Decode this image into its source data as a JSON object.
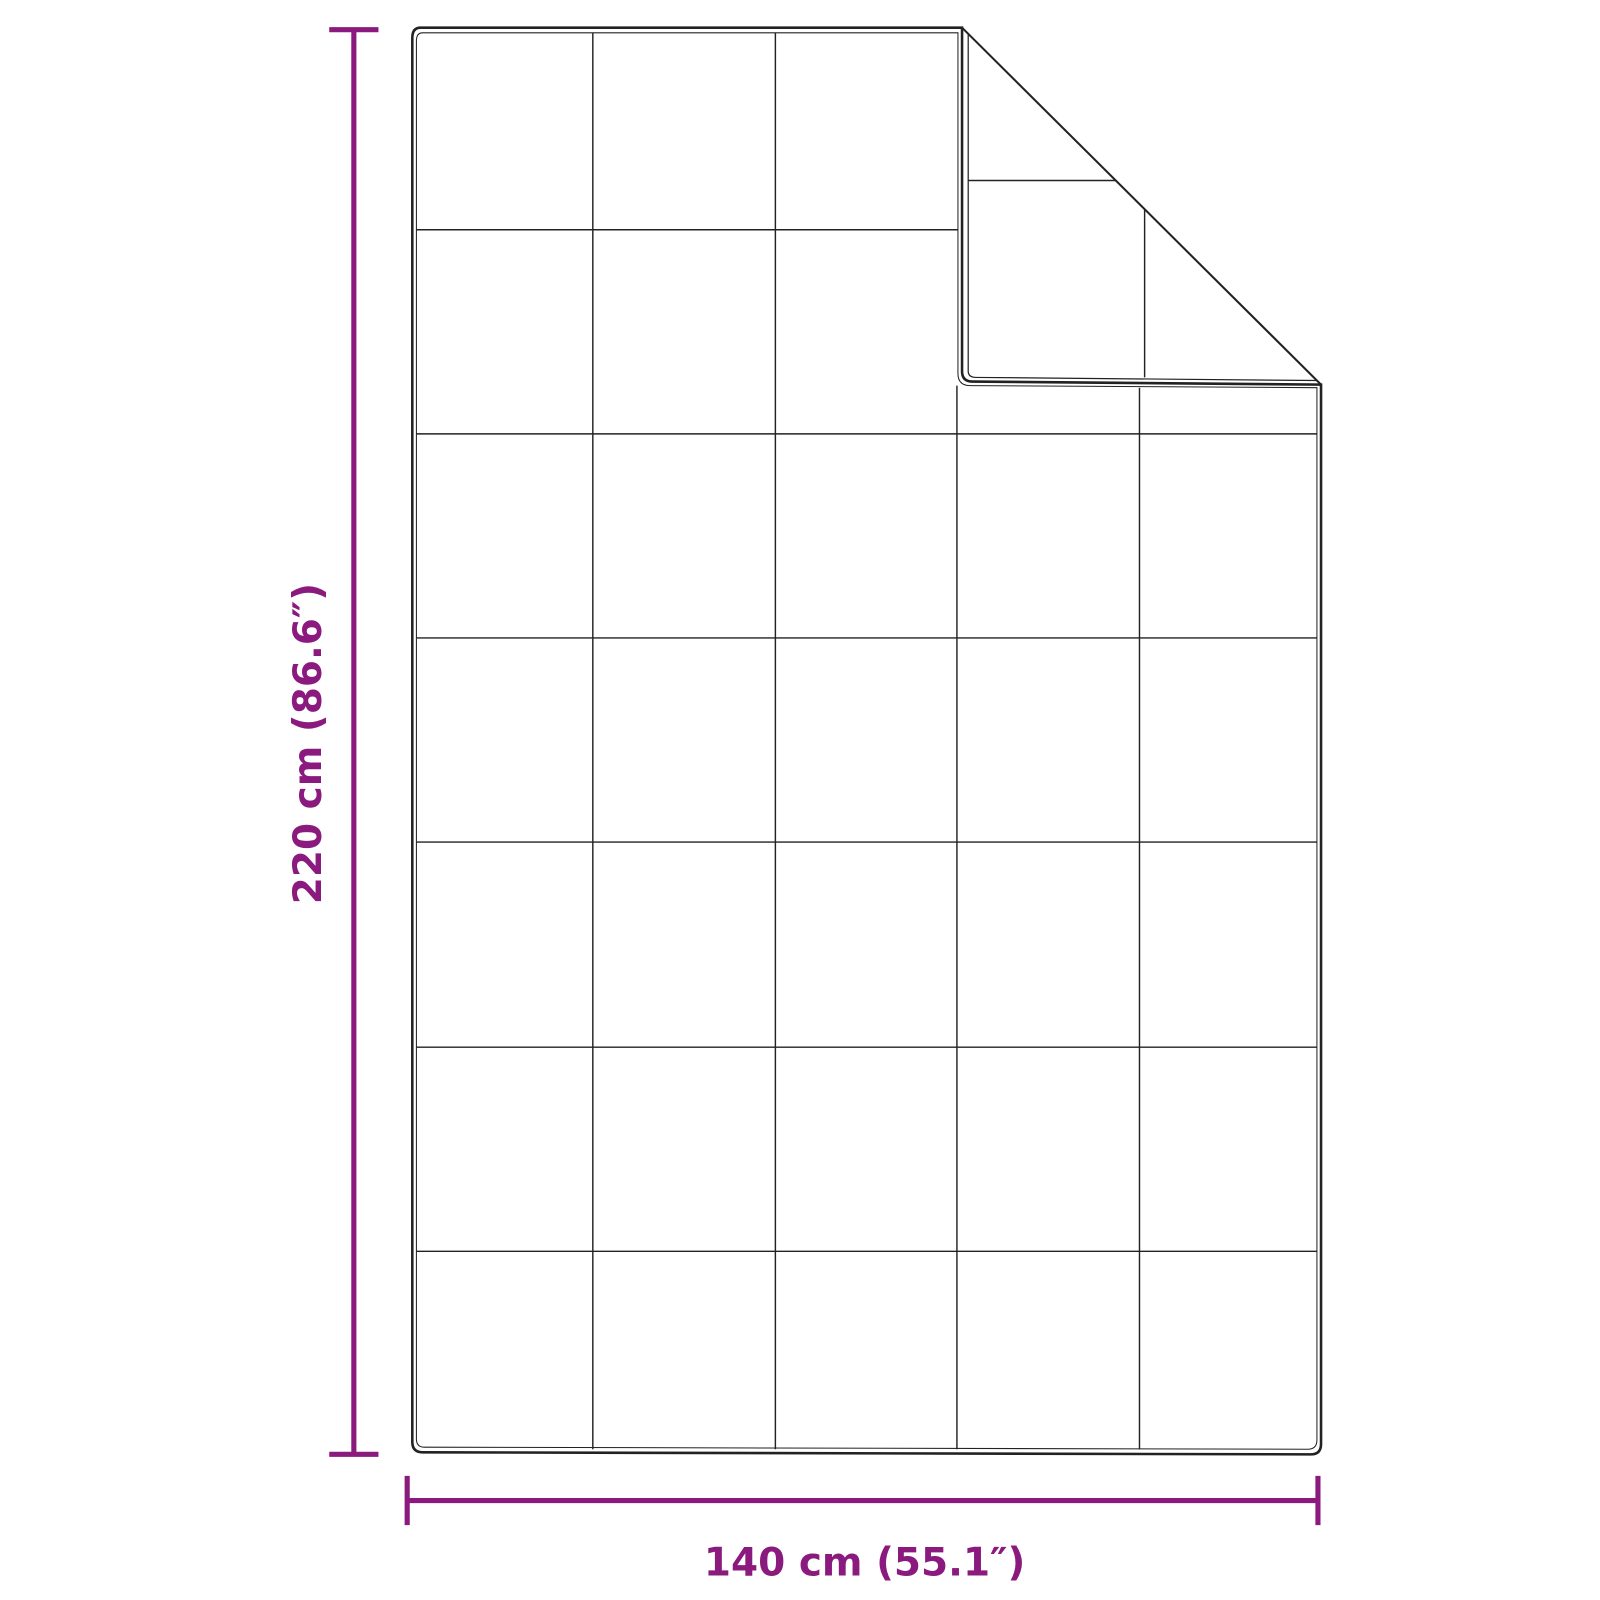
{
  "dimensions": {
    "height_label": "220 cm (86.6″)",
    "width_label": "140 cm (55.1″)"
  },
  "colors": {
    "dimension": "#8B1A7E",
    "outline": "#222222",
    "background": "#ffffff"
  },
  "illustration": {
    "subject": "quilted-blanket-with-folded-corner"
  }
}
